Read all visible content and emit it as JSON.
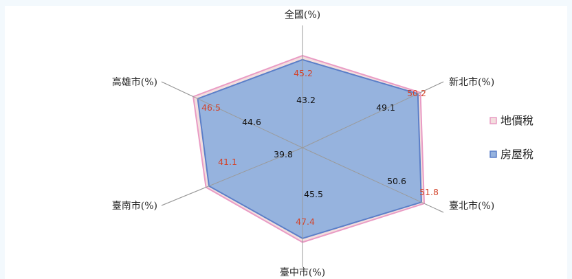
{
  "chart_data": {
    "type": "radar",
    "axes": [
      "全國(%)",
      "新北市(%)",
      "臺北市(%)",
      "臺中市(%)",
      "臺南市(%)",
      "高雄市(%)"
    ],
    "series": [
      {
        "name": "地價稅",
        "values": [
          45.2,
          50.2,
          51.8,
          47.4,
          41.1,
          46.5
        ],
        "fill": "#f3dede",
        "stroke": "#e99bc4",
        "label_color": "#d2432a"
      },
      {
        "name": "房屋稅",
        "values": [
          43.2,
          49.1,
          50.6,
          45.5,
          39.8,
          44.6
        ],
        "fill": "#96b3de",
        "stroke": "#5b7fc8",
        "label_color": "#111111"
      }
    ],
    "legend_position": "right",
    "range": [
      0,
      60
    ]
  }
}
